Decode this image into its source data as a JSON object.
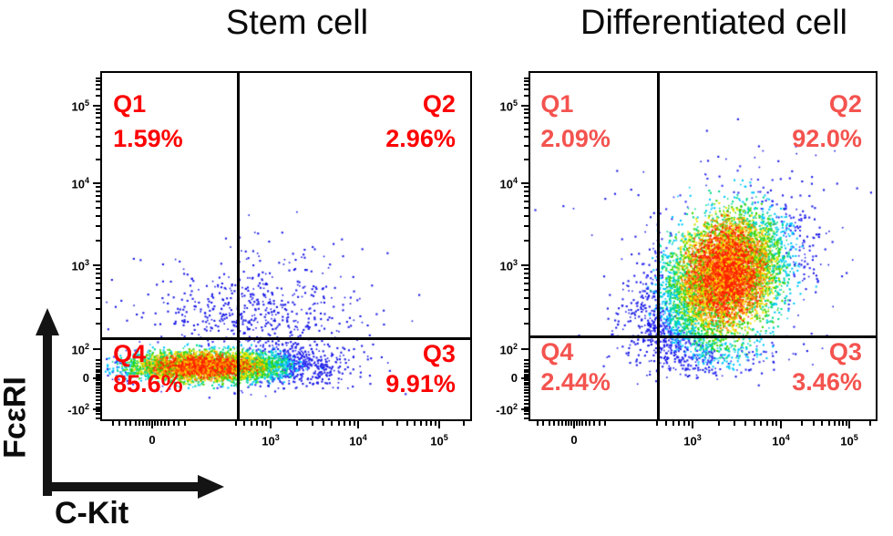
{
  "figure": {
    "x_axis_label": "C-Kit",
    "y_axis_label": "FcεRI",
    "background": "#ffffff",
    "arrow_color": "#141414"
  },
  "chart_data": [
    {
      "type": "scatter",
      "subtype": "flow-cytometry-pseudocolor-density",
      "title": "Stem cell",
      "xlabel": "C-Kit",
      "ylabel": "FcεRI",
      "x_scale": "biexponential-log",
      "y_scale": "biexponential-log",
      "label_color": "#fe0000",
      "quadrants": [
        {
          "name": "Q1",
          "value": "1.59%",
          "corner": "top-left"
        },
        {
          "name": "Q2",
          "value": "2.96%",
          "corner": "top-right"
        },
        {
          "name": "Q3",
          "value": "9.91%",
          "corner": "bottom-right"
        },
        {
          "name": "Q4",
          "value": "85.6%",
          "corner": "bottom-left"
        }
      ],
      "gate": {
        "v_frac": 0.37,
        "h_frac": 0.762
      },
      "x_ticks": [
        {
          "t": "0",
          "pos": 0.14
        },
        {
          "t": "10",
          "e": "3",
          "pos": 0.458
        },
        {
          "t": "10",
          "e": "4",
          "pos": 0.694
        },
        {
          "t": "10",
          "e": "5",
          "pos": 0.912
        }
      ],
      "y_ticks": [
        {
          "t": "10",
          "e": "5",
          "pos": 0.099
        },
        {
          "t": "10",
          "e": "4",
          "pos": 0.32
        },
        {
          "t": "10",
          "e": "3",
          "pos": 0.554
        },
        {
          "t": "10",
          "e": "2",
          "pos": 0.794
        },
        {
          "t": "0",
          "pos": 0.878
        },
        {
          "t": "-10",
          "e": "2",
          "pos": 0.965
        }
      ],
      "populations": [
        {
          "n": 3800,
          "cx": 0.27,
          "cy": 0.845,
          "sx": 0.105,
          "sy": 0.021,
          "shear": 0,
          "role": "core"
        },
        {
          "n": 950,
          "cx": 0.46,
          "cy": 0.84,
          "sx": 0.105,
          "sy": 0.032,
          "shear": 0,
          "role": "tail"
        },
        {
          "n": 470,
          "cx": 0.4,
          "cy": 0.69,
          "sx": 0.14,
          "sy": 0.052,
          "shear": 0,
          "role": "sparse"
        },
        {
          "n": 70,
          "cx": 0.45,
          "cy": 0.55,
          "sx": 0.15,
          "sy": 0.06,
          "shear": 0,
          "role": "sparse"
        }
      ]
    },
    {
      "type": "scatter",
      "subtype": "flow-cytometry-pseudocolor-density",
      "title": "Differentiated cell",
      "xlabel": "C-Kit",
      "ylabel": "FcεRI",
      "x_scale": "biexponential-log",
      "y_scale": "biexponential-log",
      "label_color": "#f4534f",
      "quadrants": [
        {
          "name": "Q1",
          "value": "2.09%",
          "corner": "top-left"
        },
        {
          "name": "Q2",
          "value": "92.0%",
          "corner": "top-right"
        },
        {
          "name": "Q3",
          "value": "3.46%",
          "corner": "bottom-right"
        },
        {
          "name": "Q4",
          "value": "2.44%",
          "corner": "bottom-left"
        }
      ],
      "gate": {
        "v_frac": 0.37,
        "h_frac": 0.757
      },
      "x_ticks": [
        {
          "t": "0",
          "pos": 0.131
        },
        {
          "t": "10",
          "e": "3",
          "pos": 0.47
        },
        {
          "t": "10",
          "e": "4",
          "pos": 0.723
        },
        {
          "t": "10",
          "e": "5",
          "pos": 0.92
        }
      ],
      "y_ticks": [
        {
          "t": "10",
          "e": "5",
          "pos": 0.099
        },
        {
          "t": "10",
          "e": "4",
          "pos": 0.32
        },
        {
          "t": "10",
          "e": "3",
          "pos": 0.554
        },
        {
          "t": "10",
          "e": "2",
          "pos": 0.794
        },
        {
          "t": "0",
          "pos": 0.878
        },
        {
          "t": "-10",
          "e": "2",
          "pos": 0.965
        }
      ],
      "populations": [
        {
          "n": 6500,
          "cx": 0.565,
          "cy": 0.575,
          "sx": 0.085,
          "sy": 0.082,
          "shear": -0.3,
          "role": "core"
        },
        {
          "n": 600,
          "cx": 0.4,
          "cy": 0.7,
          "sx": 0.07,
          "sy": 0.07,
          "shear": 0,
          "role": "sparse"
        },
        {
          "n": 430,
          "cx": 0.52,
          "cy": 0.8,
          "sx": 0.1,
          "sy": 0.035,
          "shear": 0,
          "role": "sparse"
        },
        {
          "n": 170,
          "cx": 0.6,
          "cy": 0.45,
          "sx": 0.2,
          "sy": 0.12,
          "shear": 0,
          "role": "sparse"
        }
      ]
    }
  ]
}
